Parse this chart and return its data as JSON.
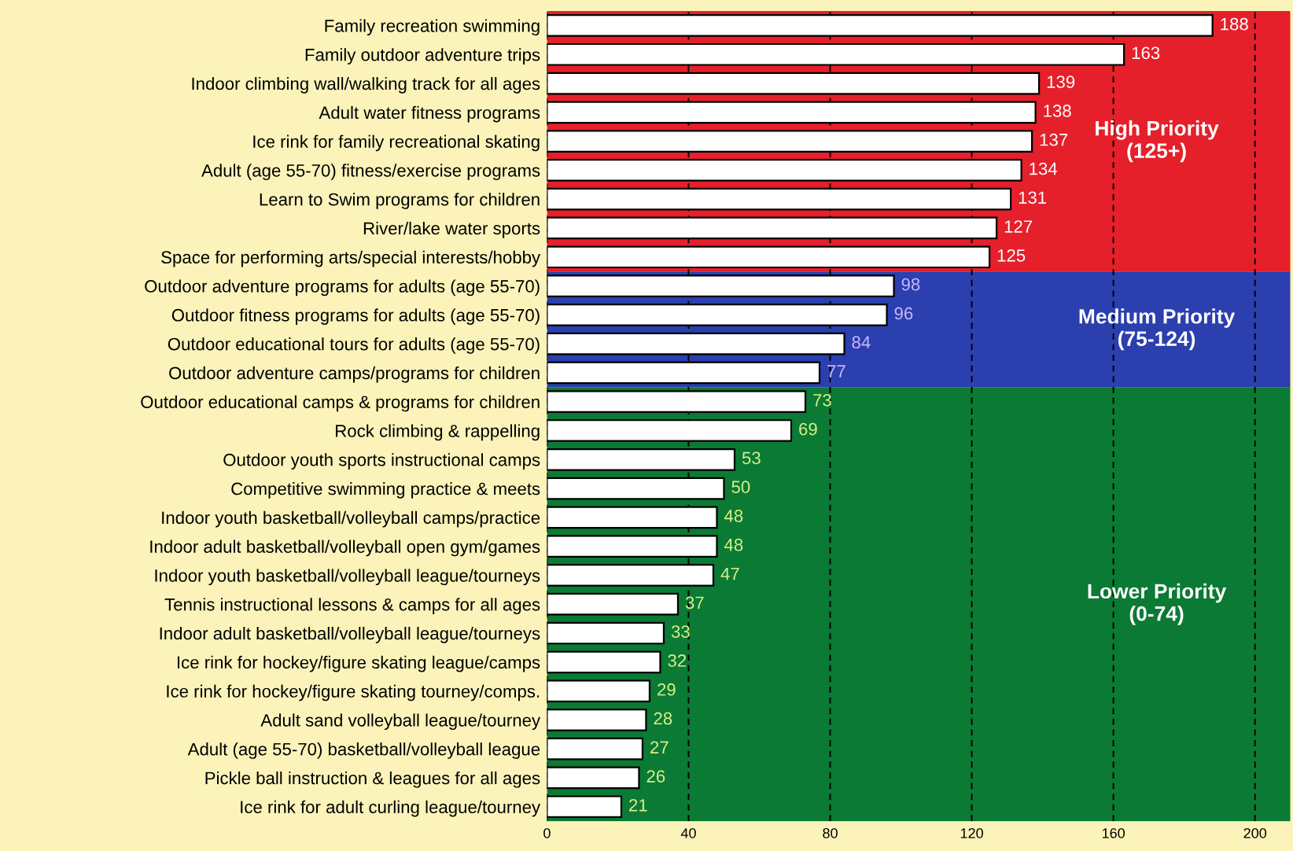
{
  "chart_data": {
    "type": "bar",
    "orientation": "horizontal",
    "categories": [
      "Family recreation swimming",
      "Family outdoor adventure trips",
      "Indoor climbing wall/walking track for all ages",
      "Adult water fitness programs",
      "Ice rink for family recreational skating",
      "Adult (age 55-70) fitness/exercise programs",
      "Learn to Swim programs for children",
      "River/lake water sports",
      "Space for performing arts/special interests/hobby",
      "Outdoor adventure programs for adults (age 55-70)",
      "Outdoor fitness programs for adults (age 55-70)",
      "Outdoor educational tours for adults (age 55-70)",
      "Outdoor adventure camps/programs for children",
      "Outdoor educational camps & programs for children",
      "Rock climbing & rappelling",
      "Outdoor youth sports instructional camps",
      "Competitive swimming practice & meets",
      "Indoor youth basketball/volleyball camps/practice",
      "Indoor adult basketball/volleyball open gym/games",
      "Indoor youth basketball/volleyball league/tourneys",
      "Tennis instructional lessons & camps for all ages",
      "Indoor adult basketball/volleyball league/tourneys",
      "Ice rink for hockey/figure skating league/camps",
      "Ice rink for hockey/figure skating tourney/comps.",
      "Adult sand volleyball league/tourney",
      "Adult (age 55-70) basketball/volleyball league",
      "Pickle ball instruction & leagues for all ages",
      "Ice rink for adult curling league/tourney"
    ],
    "values": [
      188,
      163,
      139,
      138,
      137,
      134,
      131,
      127,
      125,
      98,
      96,
      84,
      77,
      73,
      69,
      53,
      50,
      48,
      48,
      47,
      37,
      33,
      32,
      29,
      28,
      27,
      26,
      21
    ],
    "color": "#ffffff",
    "data_labels": true,
    "xlim": [
      0,
      210
    ],
    "xticks": [
      0,
      40,
      80,
      120,
      160,
      200
    ],
    "grid": "x",
    "bands": [
      {
        "axis": "y",
        "from": "Family recreation swimming",
        "to": "Space for performing arts/special interests/hobby",
        "label": "High Priority\n(125+)",
        "color": "#e5202b"
      },
      {
        "axis": "y",
        "from": "Outdoor adventure programs for adults (age 55-70)",
        "to": "Outdoor adventure camps/programs for children",
        "label": "Medium Priority\n(75-124)",
        "color": "#2b3fae"
      },
      {
        "axis": "y",
        "from": "Outdoor educational camps & programs for children",
        "to": "Ice rink for adult curling league/tourney",
        "label": "Lower Priority\n(0-74)",
        "color": "#0b7a34"
      }
    ]
  }
}
